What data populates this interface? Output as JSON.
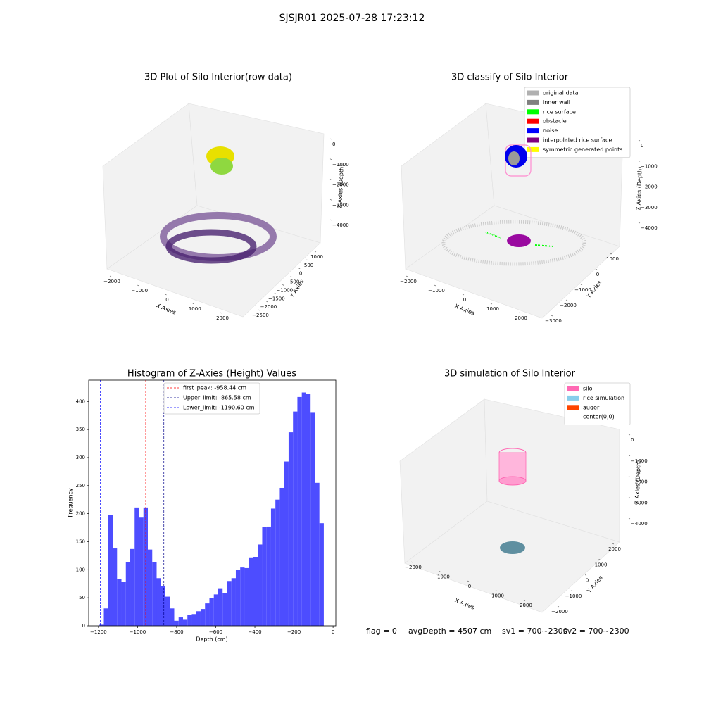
{
  "title": "SJSJR01 2025-07-28 17:23:12",
  "chart_data": [
    {
      "type": "scatter3d",
      "title": "3D Plot of Silo Interior(row data)",
      "xlabel": "X Axies",
      "ylabel": "Y Axies",
      "zlabel": "Z Axies (Depth)",
      "xticks": [
        {
          "value": -2000,
          "label": "−2000"
        },
        {
          "value": -1000,
          "label": "−1000"
        },
        0,
        1000,
        2000
      ],
      "yticks": [
        1000,
        500,
        0,
        {
          "value": -500,
          "label": "−500"
        },
        {
          "value": -1000,
          "label": "−1000"
        },
        {
          "value": -1500,
          "label": "−1500"
        },
        {
          "value": -2000,
          "label": "−2000"
        },
        {
          "value": -2500,
          "label": "−2500"
        }
      ],
      "zticks": [
        0,
        {
          "value": -1000,
          "label": "−1000"
        },
        {
          "value": -2000,
          "label": "−2000"
        },
        {
          "value": -3000,
          "label": "−3000"
        },
        {
          "value": -4000,
          "label": "−4000"
        }
      ]
    },
    {
      "type": "scatter3d",
      "title": "3D classify of Silo Interior",
      "xlabel": "X Axies",
      "ylabel": "Y Axies",
      "zlabel": "Z Axies (Depth)",
      "xticks": [
        {
          "value": -2000,
          "label": "−2000"
        },
        {
          "value": -1000,
          "label": "−1000"
        },
        0,
        1000,
        2000
      ],
      "yticks": [
        1000,
        0,
        {
          "value": -1000,
          "label": "−1000"
        },
        {
          "value": -2000,
          "label": "−2000"
        },
        {
          "value": -3000,
          "label": "−3000"
        }
      ],
      "zticks": [
        0,
        {
          "value": -1000,
          "label": "−1000"
        },
        {
          "value": -2000,
          "label": "−2000"
        },
        {
          "value": -3000,
          "label": "−3000"
        },
        {
          "value": -4000,
          "label": "−4000"
        }
      ],
      "series": [
        {
          "name": "original data",
          "color": "#b0b0b0"
        },
        {
          "name": "inner wall",
          "color": "#808080"
        },
        {
          "name": "rice surface",
          "color": "#00ff00"
        },
        {
          "name": "obstacle",
          "color": "#ff0000"
        },
        {
          "name": "noise",
          "color": "#0000ff"
        },
        {
          "name": "interpolated rice surface",
          "color": "#800080"
        },
        {
          "name": "symmetric generated points",
          "color": "#ffff00"
        }
      ]
    },
    {
      "type": "histogram",
      "title": "Histogram of Z-Axies (Height) Values",
      "xlabel": "Depth (cm)",
      "ylabel": "Frequency",
      "color": "#4d4dff",
      "bins": [
        -1195,
        -1172.5,
        -1150,
        -1127.5,
        -1105,
        -1082.5,
        -1060,
        -1037.5,
        -1015,
        -992.5,
        -970,
        -947.5,
        -925,
        -902.5,
        -880,
        -857.5,
        -835,
        -812.5,
        -790,
        -767.5,
        -745,
        -722.5,
        -700,
        -677.5,
        -655,
        -632.5,
        -610,
        -587.5,
        -565,
        -542.5,
        -520,
        -497.5,
        -475,
        -452.5,
        -430,
        -407.5,
        -385,
        -362.5,
        -340,
        -317.5,
        -295,
        -272.5,
        -250,
        -227.5,
        -205,
        -182.5,
        -160,
        -137.5,
        -115,
        -92.5,
        -70,
        -47.5
      ],
      "values": [
        2,
        31,
        198,
        138,
        83,
        78,
        113,
        137,
        211,
        193,
        211,
        136,
        113,
        85,
        71,
        52,
        31,
        9,
        15,
        12,
        20,
        21,
        26,
        30,
        40,
        49,
        56,
        67,
        58,
        80,
        85,
        100,
        104,
        103,
        122,
        123,
        145,
        176,
        177,
        209,
        225,
        246,
        293,
        345,
        382,
        408,
        416,
        414,
        381,
        255,
        183
      ],
      "xlim": [
        -1250,
        14
      ],
      "ylim": [
        0,
        438
      ],
      "xticks": [
        {
          "value": -1200,
          "label": "−1200"
        },
        {
          "value": -1000,
          "label": "−1000"
        },
        {
          "value": -800,
          "label": "−800"
        },
        {
          "value": -600,
          "label": "−600"
        },
        {
          "value": -400,
          "label": "−400"
        },
        {
          "value": -200,
          "label": "−200"
        },
        0
      ],
      "yticks": [
        0,
        50,
        100,
        150,
        200,
        250,
        300,
        350,
        400
      ],
      "lines": [
        {
          "name": "first_peak: -958.44 cm",
          "value": -958.44,
          "color": "#ff0000"
        },
        {
          "name": "Upper_limit: -865.58 cm",
          "value": -865.58,
          "color": "#00008b"
        },
        {
          "name": "Lower_limit: -1190.60 cm",
          "value": -1190.6,
          "color": "#0000ff"
        }
      ]
    },
    {
      "type": "scatter3d",
      "title": "3D simulation of Silo Interior",
      "xlabel": "X Axies",
      "ylabel": "Y Axies",
      "zlabel": "Z Axies (Depth)",
      "xticks": [
        {
          "value": -2000,
          "label": "−2000"
        },
        {
          "value": -1000,
          "label": "−1000"
        },
        0,
        1000,
        2000
      ],
      "yticks": [
        2000,
        1000,
        0,
        {
          "value": -1000,
          "label": "−1000"
        },
        {
          "value": -2000,
          "label": "−2000"
        }
      ],
      "zticks": [
        0,
        {
          "value": -1000,
          "label": "−1000"
        },
        {
          "value": -2000,
          "label": "−2000"
        },
        {
          "value": -3000,
          "label": "−3000"
        },
        {
          "value": -4000,
          "label": "−4000"
        }
      ],
      "series": [
        {
          "name": "silo",
          "color": "#ff69b4"
        },
        {
          "name": "rice simulation",
          "color": "#87ceeb"
        },
        {
          "name": "auger",
          "color": "#ff4500"
        },
        {
          "name": "center(0,0)",
          "color": "#ffffff"
        }
      ]
    }
  ],
  "footer": [
    "flag = 0",
    "avgDepth = 4507 cm",
    "sv1 = 700~2300",
    "sv2 = 700~2300"
  ]
}
